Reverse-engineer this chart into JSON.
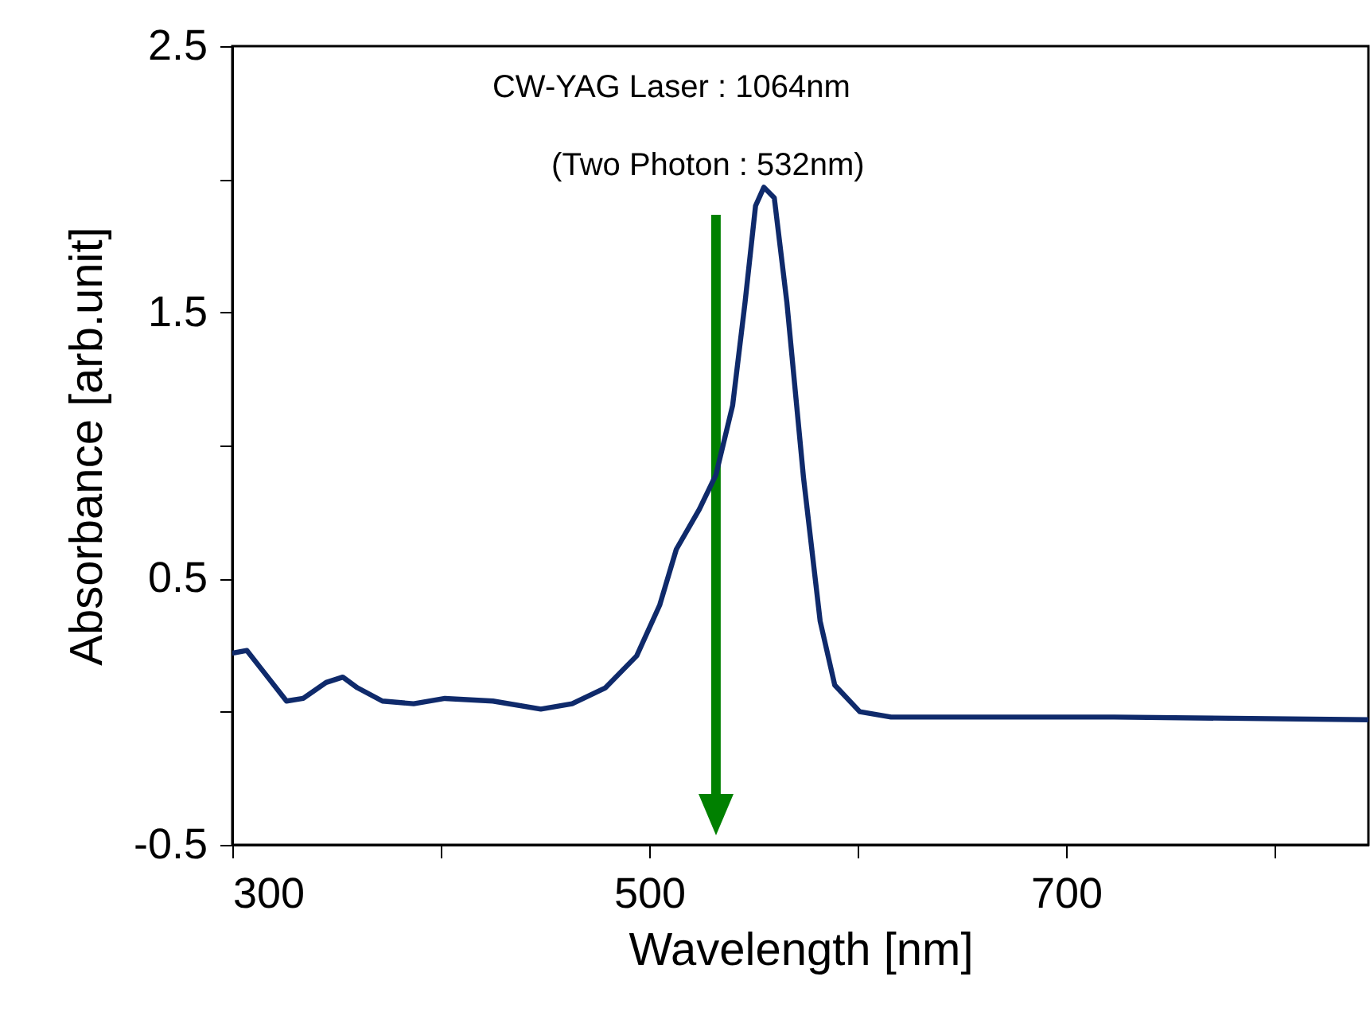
{
  "chart_data": {
    "type": "line",
    "xlabel": "Wavelength [nm]",
    "ylabel": "Absorbance [arb.unit]",
    "x": [
      300,
      307,
      314,
      326,
      334,
      345,
      353,
      360,
      372,
      387,
      402,
      425,
      448,
      463,
      479,
      494,
      505,
      513,
      524,
      532,
      540,
      546,
      551,
      555,
      560,
      566,
      574,
      582,
      589,
      601,
      616,
      723,
      845
    ],
    "series": [
      {
        "color": "#0f2a6b",
        "values": [
          0.22,
          0.23,
          0.16,
          0.04,
          0.05,
          0.11,
          0.13,
          0.09,
          0.04,
          0.03,
          0.05,
          0.04,
          0.01,
          0.03,
          0.09,
          0.21,
          0.4,
          0.61,
          0.76,
          0.89,
          1.15,
          1.54,
          1.9,
          1.97,
          1.93,
          1.54,
          0.88,
          0.34,
          0.1,
          0.0,
          -0.02,
          -0.02,
          -0.03
        ]
      }
    ],
    "xlim": [
      300,
      845
    ],
    "xticks": [
      300,
      {
        "value": 400,
        "label": null
      },
      500,
      {
        "value": 600,
        "label": null
      },
      700,
      {
        "value": 800,
        "label": null
      }
    ],
    "ylim": [
      -0.5,
      2.5
    ],
    "yticks": [
      -0.5,
      {
        "value": 0,
        "label": null
      },
      0.5,
      {
        "value": 1,
        "label": null
      },
      1.5,
      {
        "value": 2,
        "label": null
      },
      2.5
    ],
    "grid": false,
    "marker": "none",
    "line_style": "solid",
    "ref_lines": [
      {
        "axis": "x",
        "value": 532,
        "label": "(Two Photon : 532nm)",
        "color": "#008000"
      }
    ],
    "annotations": [
      "CW-YAG Laser : 1064nm"
    ]
  }
}
